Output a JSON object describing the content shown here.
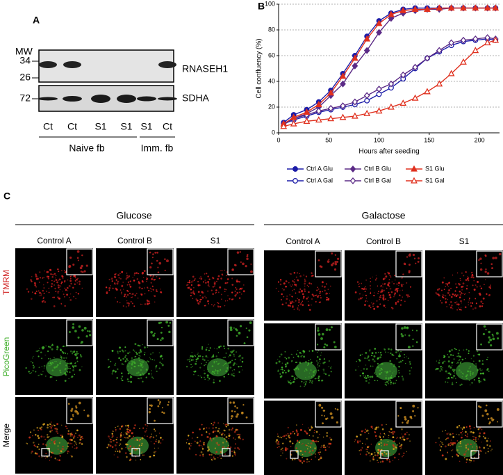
{
  "panel_a": {
    "label": "A",
    "mw_title": "MW",
    "mw_markers": [
      34,
      26,
      72
    ],
    "proteins": [
      "RNASEH1",
      "SDHA"
    ],
    "lanes": [
      "Ct",
      "Ct",
      "S1",
      "S1",
      "S1",
      "Ct"
    ],
    "groups": [
      "Naive fb",
      "Imm. fb"
    ]
  },
  "chart_data": {
    "type": "line",
    "panel_label": "B",
    "x_label": "Hours after seeding",
    "y_label": "Cell confluency (%)",
    "x": [
      5,
      15,
      28,
      40,
      52,
      64,
      76,
      88,
      100,
      112,
      124,
      136,
      148,
      160,
      172,
      184,
      196,
      208,
      216
    ],
    "xlim": [
      0,
      220
    ],
    "xticks": [
      0,
      50,
      100,
      150,
      200
    ],
    "ylim": [
      0,
      100
    ],
    "yticks": [
      0,
      20,
      40,
      60,
      80,
      100
    ],
    "grid": true,
    "series": [
      {
        "name": "Ctrl A Glu",
        "color": "#1c1ca8",
        "marker": "circle",
        "filled": true,
        "values": [
          8,
          14,
          18,
          24,
          33,
          46,
          60,
          75,
          87,
          93,
          96,
          97,
          97,
          97,
          97,
          97,
          97,
          97,
          97
        ]
      },
      {
        "name": "Ctrl A Gal",
        "color": "#1c1ca8",
        "marker": "circle",
        "filled": false,
        "values": [
          7,
          10,
          13,
          16,
          18,
          20,
          22,
          25,
          30,
          35,
          42,
          50,
          58,
          63,
          68,
          71,
          72,
          73,
          72
        ]
      },
      {
        "name": "Ctrl B Glu",
        "color": "#5b2a86",
        "marker": "diamond",
        "filled": true,
        "values": [
          7,
          11,
          15,
          20,
          29,
          38,
          52,
          64,
          78,
          89,
          93,
          95,
          96,
          96,
          97,
          97,
          97,
          97,
          97
        ]
      },
      {
        "name": "Ctrl B Gal",
        "color": "#5b2a86",
        "marker": "diamond",
        "filled": false,
        "values": [
          7,
          11,
          14,
          17,
          19,
          21,
          24,
          29,
          34,
          38,
          45,
          51,
          58,
          64,
          70,
          72,
          73,
          74,
          73
        ]
      },
      {
        "name": "S1 Glu",
        "color": "#e0301e",
        "marker": "triangle",
        "filled": true,
        "values": [
          7,
          12,
          16,
          22,
          31,
          44,
          58,
          73,
          85,
          92,
          95,
          96,
          96,
          97,
          97,
          97,
          97,
          97,
          97
        ]
      },
      {
        "name": "S1 Gal",
        "color": "#e0301e",
        "marker": "triangle",
        "filled": false,
        "values": [
          5,
          7,
          9,
          10,
          11,
          12,
          13,
          15,
          17,
          20,
          23,
          27,
          32,
          38,
          46,
          55,
          64,
          70,
          72
        ]
      }
    ]
  },
  "panel_c": {
    "label": "C",
    "groups": [
      "Glucose",
      "Galactose"
    ],
    "columns": [
      "Control A",
      "Control B",
      "S1"
    ],
    "rows": [
      "TMRM",
      "PicoGreen",
      "Merge"
    ]
  }
}
